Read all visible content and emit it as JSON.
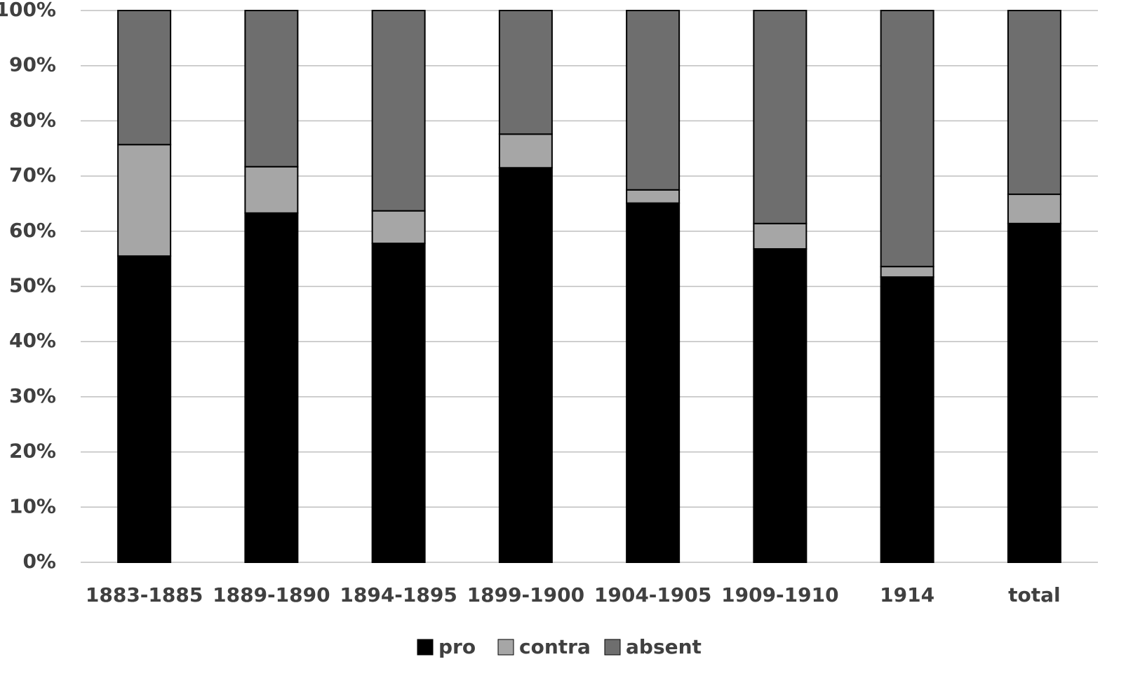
{
  "chart_data": {
    "type": "stacked-bar",
    "categories": [
      "1883-1885",
      "1889-1890",
      "1894-1895",
      "1899-1900",
      "1904-1905",
      "1909-1910",
      "1914",
      "total"
    ],
    "series": [
      {
        "name": "pro",
        "color": "#000000",
        "values": [
          55.5,
          63.3,
          57.8,
          71.5,
          65.1,
          56.8,
          51.7,
          61.4
        ]
      },
      {
        "name": "contra",
        "color": "#a6a6a6",
        "values": [
          20.2,
          8.4,
          5.9,
          6.1,
          2.4,
          4.6,
          1.9,
          5.3
        ]
      },
      {
        "name": "absent",
        "color": "#6e6e6e",
        "values": [
          24.3,
          28.3,
          36.3,
          22.4,
          32.5,
          38.6,
          46.4,
          33.3
        ]
      }
    ],
    "ylim": [
      0,
      100
    ],
    "yticks": [
      {
        "value": 0,
        "label": "0%"
      },
      {
        "value": 10,
        "label": "10%"
      },
      {
        "value": 20,
        "label": "20%"
      },
      {
        "value": 30,
        "label": "30%"
      },
      {
        "value": 40,
        "label": "40%"
      },
      {
        "value": 50,
        "label": "50%"
      },
      {
        "value": 60,
        "label": "60%"
      },
      {
        "value": 70,
        "label": "70%"
      },
      {
        "value": 80,
        "label": "80%"
      },
      {
        "value": 90,
        "label": "90%"
      },
      {
        "value": 100,
        "label": "100%"
      }
    ],
    "grid": true,
    "legend": "bottom"
  }
}
